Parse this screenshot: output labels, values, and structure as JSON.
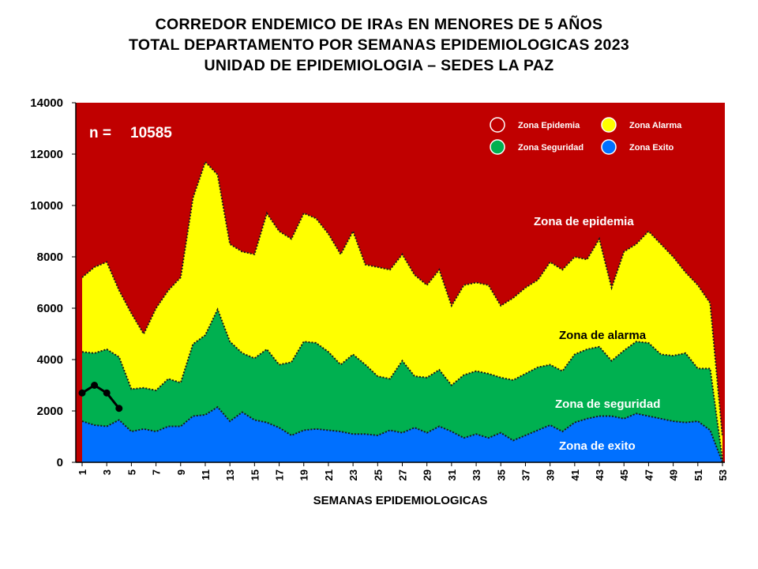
{
  "title_lines": [
    "CORREDOR ENDEMICO DE IRAs EN MENORES DE 5 AÑOS",
    "TOTAL DEPARTAMENTO POR SEMANAS EPIDEMIOLOGICAS 2023",
    "UNIDAD DE EPIDEMIOLOGIA – SEDES LA PAZ"
  ],
  "n_label": "n =",
  "n_value": "10585",
  "colors": {
    "epidemia": "#c00000",
    "alarma": "#ffff00",
    "seguridad": "#00b050",
    "exito": "#0070ff",
    "observed": "#000000"
  },
  "legend": [
    {
      "label": "Zona Epidemia",
      "color": "#c00000"
    },
    {
      "label": "Zona Alarma",
      "color": "#ffff00"
    },
    {
      "label": "Zona Seguridad",
      "color": "#00b050"
    },
    {
      "label": "Zona Exito",
      "color": "#0070ff"
    }
  ],
  "zone_labels": {
    "epidemia": "Zona de epidemia",
    "alarma": "Zona de alarma",
    "seguridad": "Zona de  seguridad",
    "exito": "Zona de exito"
  },
  "chart_data": {
    "type": "area",
    "xlabel": "SEMANAS EPIDEMIOLOGICAS",
    "ylabel": "",
    "ylim": [
      0,
      14000
    ],
    "yticks": [
      0,
      2000,
      4000,
      6000,
      8000,
      10000,
      12000,
      14000
    ],
    "xticks": [
      1,
      3,
      5,
      7,
      9,
      11,
      13,
      15,
      17,
      19,
      21,
      23,
      25,
      27,
      29,
      31,
      33,
      35,
      37,
      39,
      41,
      43,
      45,
      47,
      49,
      51,
      53
    ],
    "x": [
      1,
      2,
      3,
      4,
      5,
      6,
      7,
      8,
      9,
      10,
      11,
      12,
      13,
      14,
      15,
      16,
      17,
      18,
      19,
      20,
      21,
      22,
      23,
      24,
      25,
      26,
      27,
      28,
      29,
      30,
      31,
      32,
      33,
      34,
      35,
      36,
      37,
      38,
      39,
      40,
      41,
      42,
      43,
      44,
      45,
      46,
      47,
      48,
      49,
      50,
      51,
      52,
      53
    ],
    "series": [
      {
        "name": "Zona Exito",
        "values": [
          1600,
          1450,
          1400,
          1650,
          1200,
          1300,
          1200,
          1400,
          1400,
          1800,
          1850,
          2150,
          1600,
          1950,
          1650,
          1550,
          1350,
          1050,
          1250,
          1300,
          1250,
          1200,
          1100,
          1100,
          1050,
          1250,
          1150,
          1350,
          1150,
          1400,
          1200,
          950,
          1100,
          950,
          1150,
          850,
          1050,
          1250,
          1450,
          1200,
          1550,
          1700,
          1800,
          1800,
          1700,
          1900,
          1800,
          1700,
          1600,
          1550,
          1600,
          1250,
          0
        ]
      },
      {
        "name": "Zona Seguridad",
        "values": [
          4300,
          4250,
          4400,
          4100,
          2850,
          2900,
          2800,
          3250,
          3100,
          4600,
          4950,
          5950,
          4700,
          4250,
          4050,
          4400,
          3800,
          3900,
          4700,
          4650,
          4300,
          3800,
          4200,
          3800,
          3350,
          3250,
          3950,
          3350,
          3300,
          3600,
          3000,
          3400,
          3550,
          3450,
          3300,
          3200,
          3450,
          3700,
          3800,
          3550,
          4200,
          4400,
          4500,
          3950,
          4350,
          4700,
          4650,
          4200,
          4150,
          4250,
          3650,
          3650,
          100
        ]
      },
      {
        "name": "Zona Alarma",
        "values": [
          7200,
          7600,
          7800,
          6700,
          5800,
          5000,
          6000,
          6700,
          7200,
          10300,
          11700,
          11200,
          8500,
          8200,
          8100,
          9700,
          9000,
          8700,
          9700,
          9500,
          8900,
          8100,
          9000,
          7700,
          7600,
          7500,
          8100,
          7300,
          6900,
          7500,
          6100,
          6900,
          7000,
          6900,
          6100,
          6400,
          6800,
          7100,
          7800,
          7500,
          8000,
          7900,
          8700,
          6800,
          8200,
          8500,
          9000,
          8500,
          8000,
          7400,
          6900,
          6200,
          1000
        ]
      },
      {
        "name": "2023",
        "x": [
          1,
          2,
          3,
          4
        ],
        "values": [
          2700,
          3000,
          2700,
          2100
        ]
      }
    ]
  }
}
